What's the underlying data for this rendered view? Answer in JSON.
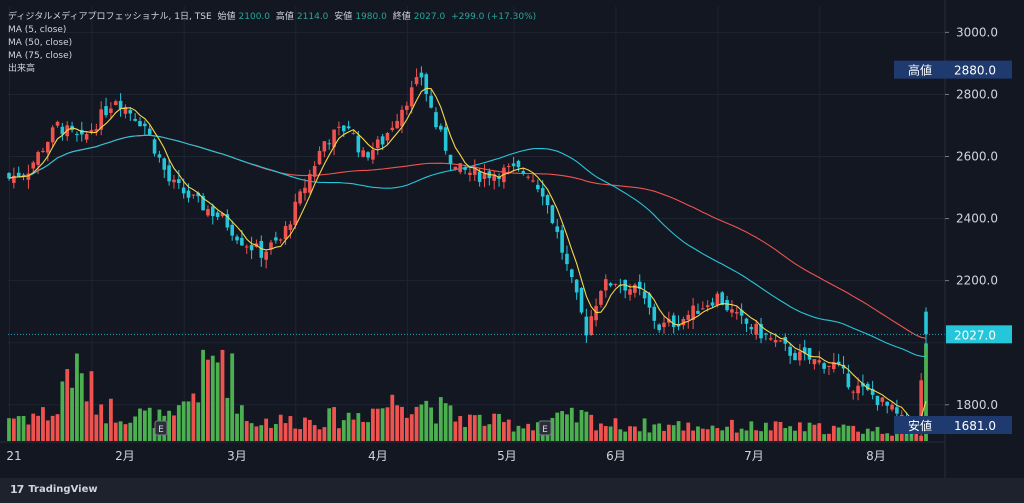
{
  "header": {
    "title": "ディジタルメディアプロフェッショナル, 1日, TSE",
    "open_label": "始値",
    "open": "2100.0",
    "high_label": "高値",
    "high": "2114.0",
    "low_label": "安値",
    "low": "1980.0",
    "close_label": "終値",
    "close": "2027.0",
    "change": "+299.0 (+17.30%)"
  },
  "indicators": [
    "MA (5, close)",
    "MA (50, close)",
    "MA (75, close)",
    "出来高"
  ],
  "colors": {
    "background": "#131722",
    "up": "#ef5350",
    "down": "#26c6da",
    "vol_up": "#ef5350",
    "vol_down": "#4caf50",
    "ma5": "#f5d64b",
    "ma50": "#26c6da",
    "ma75": "#ef5350",
    "grid": "#1f2433",
    "text": "#d1d4dc",
    "high_tag": "#1e3a6e",
    "last_tag": "#26c6da"
  },
  "price_axis": {
    "ticks": [
      "3000.0",
      "2800.0",
      "2600.0",
      "2400.0",
      "2200.0",
      "1800.0"
    ],
    "high_tag_label": "高値",
    "high_tag_value": "2880.0",
    "low_tag_label": "安値",
    "low_tag_value": "1681.0",
    "last_value": "2027.0"
  },
  "time_axis": {
    "labels": [
      "21",
      "2月",
      "3月",
      "4月",
      "5月",
      "6月",
      "7月",
      "8月"
    ],
    "event_marker": "E"
  },
  "watermark": "TradingView",
  "chart_data": {
    "type": "candlestick",
    "period": "1日",
    "ylim": [
      1680,
      3085
    ],
    "x": [
      "2021-01",
      "2021-02",
      "2021-03",
      "2021-04",
      "2021-05",
      "2021-06",
      "2021-07",
      "2021-08"
    ],
    "close_anchors": [
      [
        0,
        2530
      ],
      [
        4,
        2560
      ],
      [
        10,
        2700
      ],
      [
        15,
        2650
      ],
      [
        22,
        2790
      ],
      [
        28,
        2700
      ],
      [
        33,
        2520
      ],
      [
        38,
        2460
      ],
      [
        44,
        2400
      ],
      [
        48,
        2330
      ],
      [
        52,
        2290
      ],
      [
        56,
        2330
      ],
      [
        60,
        2470
      ],
      [
        65,
        2650
      ],
      [
        70,
        2700
      ],
      [
        73,
        2600
      ],
      [
        77,
        2650
      ],
      [
        81,
        2760
      ],
      [
        85,
        2860
      ],
      [
        88,
        2700
      ],
      [
        92,
        2560
      ],
      [
        97,
        2540
      ],
      [
        103,
        2555
      ],
      [
        107,
        2550
      ],
      [
        110,
        2490
      ],
      [
        113,
        2350
      ],
      [
        116,
        2190
      ],
      [
        119,
        2040
      ],
      [
        122,
        2180
      ],
      [
        125,
        2200
      ],
      [
        130,
        2160
      ],
      [
        134,
        2050
      ],
      [
        138,
        2070
      ],
      [
        142,
        2110
      ],
      [
        146,
        2150
      ],
      [
        150,
        2080
      ],
      [
        154,
        2040
      ],
      [
        158,
        2000
      ],
      [
        162,
        1960
      ],
      [
        166,
        1940
      ],
      [
        170,
        1930
      ],
      [
        174,
        1860
      ],
      [
        178,
        1830
      ],
      [
        182,
        1780
      ],
      [
        185,
        1730
      ],
      [
        187,
        1710
      ],
      [
        189,
        2027
      ]
    ],
    "volume_anchors": [
      [
        0,
        30
      ],
      [
        10,
        35
      ],
      [
        12,
        95
      ],
      [
        20,
        40
      ],
      [
        34,
        25
      ],
      [
        44,
        115
      ],
      [
        49,
        25
      ],
      [
        58,
        25
      ],
      [
        70,
        30
      ],
      [
        83,
        55
      ],
      [
        92,
        30
      ],
      [
        105,
        20
      ],
      [
        118,
        30
      ],
      [
        124,
        20
      ],
      [
        150,
        18
      ],
      [
        175,
        15
      ],
      [
        188,
        10
      ],
      [
        189,
        95
      ]
    ],
    "series": [
      {
        "name": "MA (5, close)",
        "period": 5
      },
      {
        "name": "MA (50, close)",
        "period": 50
      },
      {
        "name": "MA (75, close)",
        "period": 75
      },
      {
        "name": "出来高"
      }
    ],
    "grid": true
  }
}
